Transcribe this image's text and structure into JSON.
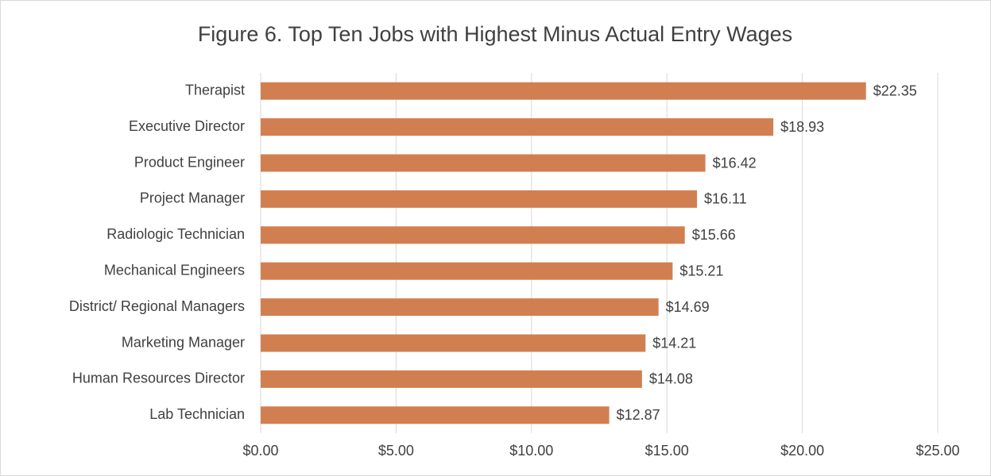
{
  "chart_data": {
    "type": "bar",
    "orientation": "horizontal",
    "title": "Figure 6. Top Ten Jobs with Highest Minus Actual Entry Wages",
    "categories": [
      "Therapist",
      "Executive Director",
      "Product Engineer",
      "Project Manager",
      "Radiologic Technician",
      "Mechanical Engineers",
      "District/ Regional Managers",
      "Marketing Manager",
      "Human Resources Director",
      "Lab Technician"
    ],
    "values": [
      22.35,
      18.93,
      16.42,
      16.11,
      15.66,
      15.21,
      14.69,
      14.21,
      14.08,
      12.87
    ],
    "value_labels": [
      "$22.35",
      "$18.93",
      "$16.42",
      "$16.11",
      "$15.66",
      "$15.21",
      "$14.69",
      "$14.21",
      "$14.08",
      "$12.87"
    ],
    "color": "#d17f51",
    "xlim": [
      0,
      25
    ],
    "xticks": [
      {
        "value": 0,
        "label": "$0.00"
      },
      {
        "value": 5,
        "label": "$5.00"
      },
      {
        "value": 10,
        "label": "$10.00"
      },
      {
        "value": 15,
        "label": "$15.00"
      },
      {
        "value": 20,
        "label": "$20.00"
      },
      {
        "value": 25,
        "label": "$25.00"
      }
    ],
    "grid": true
  }
}
